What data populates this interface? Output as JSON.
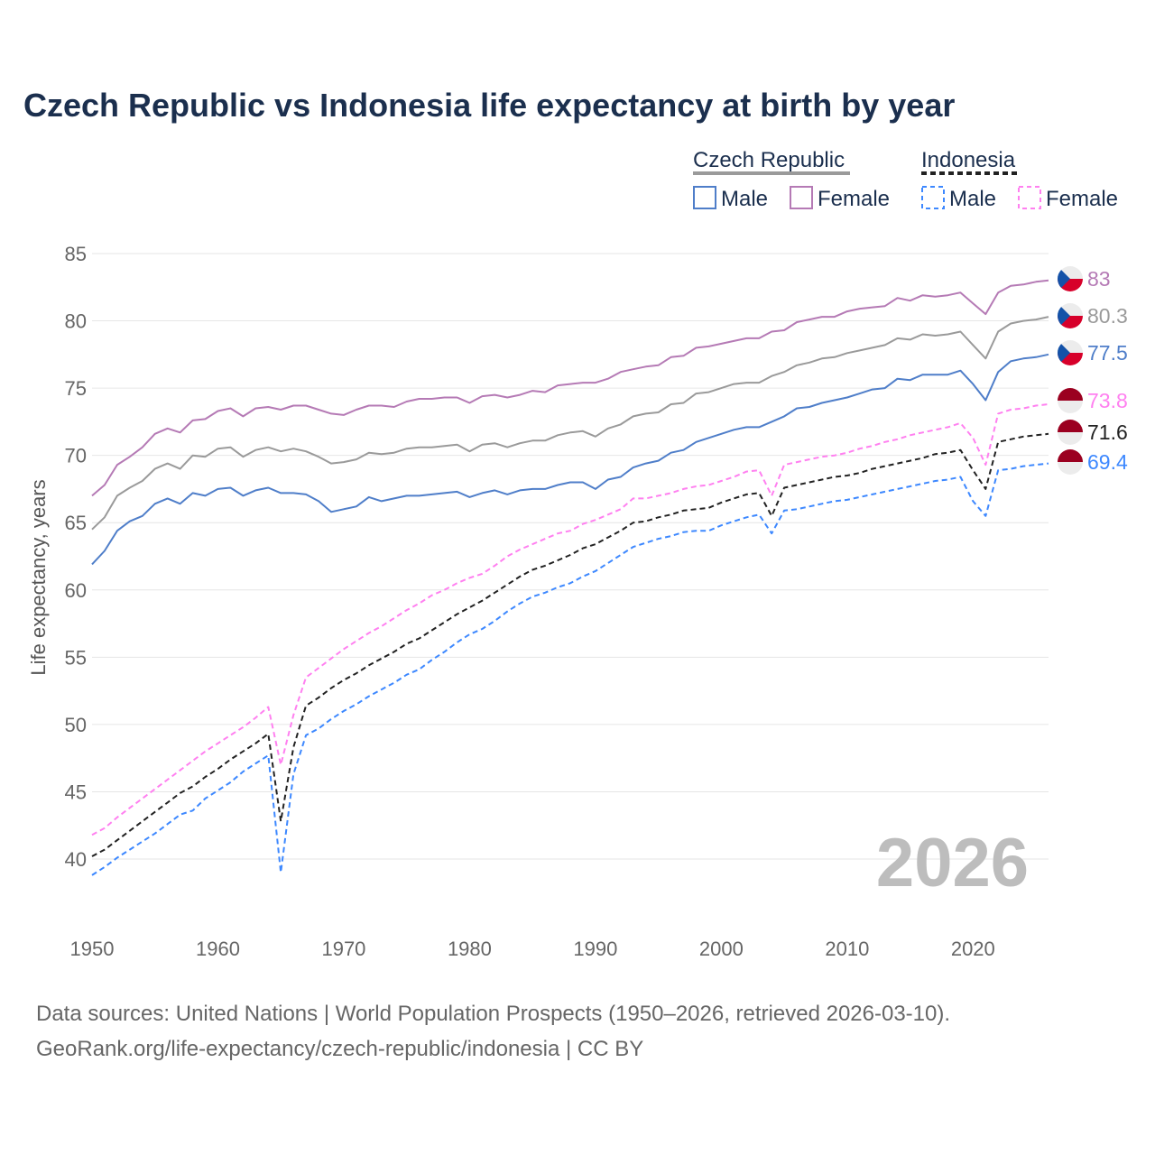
{
  "chart_data": {
    "type": "line",
    "title": "Czech Republic vs Indonesia life expectancy at birth by year",
    "xlabel": "",
    "ylabel": "Life expectancy, years",
    "x_start": 1950,
    "x_end": 2026,
    "xlim": [
      1950,
      2026
    ],
    "ylim": [
      37,
      85
    ],
    "x_ticks": [
      1950,
      1960,
      1970,
      1980,
      1990,
      2000,
      2010,
      2020
    ],
    "y_ticks": [
      40,
      45,
      50,
      55,
      60,
      65,
      70,
      75,
      80,
      85
    ],
    "grid": true,
    "watermark_year": "2026",
    "legend": {
      "groups": [
        {
          "name": "Czech Republic",
          "items": [
            "Male",
            "Female"
          ]
        },
        {
          "name": "Indonesia",
          "items": [
            "Male",
            "Female"
          ]
        }
      ],
      "placement": "top-right"
    },
    "series": [
      {
        "name": "Czech Republic Female",
        "country": "Czech Republic",
        "sex": "Female",
        "color": "#b57ab5",
        "dashed": false,
        "end_label": "83",
        "values": [
          67.0,
          67.8,
          69.3,
          69.9,
          70.6,
          71.6,
          72.0,
          71.7,
          72.6,
          72.7,
          73.3,
          73.5,
          72.9,
          73.5,
          73.6,
          73.4,
          73.7,
          73.7,
          73.4,
          73.1,
          73.0,
          73.4,
          73.7,
          73.7,
          73.6,
          74.0,
          74.2,
          74.2,
          74.3,
          74.3,
          73.9,
          74.4,
          74.5,
          74.3,
          74.5,
          74.8,
          74.7,
          75.2,
          75.3,
          75.4,
          75.4,
          75.7,
          76.2,
          76.4,
          76.6,
          76.7,
          77.3,
          77.4,
          78.0,
          78.1,
          78.3,
          78.5,
          78.7,
          78.7,
          79.2,
          79.3,
          79.9,
          80.1,
          80.3,
          80.3,
          80.7,
          80.9,
          81.0,
          81.1,
          81.7,
          81.5,
          81.9,
          81.8,
          81.9,
          82.1,
          81.3,
          80.5,
          82.1,
          82.6,
          82.7,
          82.9,
          83.0
        ]
      },
      {
        "name": "Czech Republic",
        "country": "Czech Republic",
        "sex": "Total",
        "color": "#9a9a9a",
        "dashed": false,
        "end_label": "80.3",
        "values": [
          64.5,
          65.4,
          67.0,
          67.6,
          68.1,
          69.0,
          69.4,
          69.0,
          70.0,
          69.9,
          70.5,
          70.6,
          69.9,
          70.4,
          70.6,
          70.3,
          70.5,
          70.3,
          69.9,
          69.4,
          69.5,
          69.7,
          70.2,
          70.1,
          70.2,
          70.5,
          70.6,
          70.6,
          70.7,
          70.8,
          70.3,
          70.8,
          70.9,
          70.6,
          70.9,
          71.1,
          71.1,
          71.5,
          71.7,
          71.8,
          71.4,
          72.0,
          72.3,
          72.9,
          73.1,
          73.2,
          73.8,
          73.9,
          74.6,
          74.7,
          75.0,
          75.3,
          75.4,
          75.4,
          75.9,
          76.2,
          76.7,
          76.9,
          77.2,
          77.3,
          77.6,
          77.8,
          78.0,
          78.2,
          78.7,
          78.6,
          79.0,
          78.9,
          79.0,
          79.2,
          78.2,
          77.2,
          79.2,
          79.8,
          80.0,
          80.1,
          80.3
        ]
      },
      {
        "name": "Czech Republic Male",
        "country": "Czech Republic",
        "sex": "Male",
        "color": "#4f7ec9",
        "dashed": false,
        "end_label": "77.5",
        "values": [
          61.9,
          62.9,
          64.4,
          65.1,
          65.5,
          66.4,
          66.8,
          66.4,
          67.2,
          67.0,
          67.5,
          67.6,
          67.0,
          67.4,
          67.6,
          67.2,
          67.2,
          67.1,
          66.6,
          65.8,
          66.0,
          66.2,
          66.9,
          66.6,
          66.8,
          67.0,
          67.0,
          67.1,
          67.2,
          67.3,
          66.9,
          67.2,
          67.4,
          67.1,
          67.4,
          67.5,
          67.5,
          67.8,
          68.0,
          68.0,
          67.5,
          68.2,
          68.4,
          69.1,
          69.4,
          69.6,
          70.2,
          70.4,
          71.0,
          71.3,
          71.6,
          71.9,
          72.1,
          72.1,
          72.5,
          72.9,
          73.5,
          73.6,
          73.9,
          74.1,
          74.3,
          74.6,
          74.9,
          75.0,
          75.7,
          75.6,
          76.0,
          76.0,
          76.0,
          76.3,
          75.3,
          74.1,
          76.2,
          77.0,
          77.2,
          77.3,
          77.5
        ]
      },
      {
        "name": "Indonesia Female",
        "country": "Indonesia",
        "sex": "Female",
        "color": "#ff80f0",
        "dashed": true,
        "end_label": "73.8",
        "values": [
          41.8,
          42.3,
          43.1,
          43.8,
          44.5,
          45.2,
          45.9,
          46.6,
          47.3,
          48.0,
          48.6,
          49.2,
          49.8,
          50.5,
          51.3,
          47.0,
          50.7,
          53.5,
          54.2,
          54.9,
          55.6,
          56.2,
          56.8,
          57.3,
          57.9,
          58.5,
          59.0,
          59.6,
          60.0,
          60.5,
          60.9,
          61.2,
          61.8,
          62.5,
          63.0,
          63.4,
          63.8,
          64.2,
          64.4,
          64.9,
          65.2,
          65.6,
          66.0,
          66.8,
          66.8,
          67.0,
          67.2,
          67.5,
          67.7,
          67.8,
          68.1,
          68.4,
          68.8,
          68.9,
          67.0,
          69.3,
          69.5,
          69.7,
          69.9,
          70.0,
          70.2,
          70.5,
          70.7,
          71.0,
          71.2,
          71.5,
          71.7,
          71.9,
          72.1,
          72.4,
          71.3,
          69.3,
          73.1,
          73.4,
          73.5,
          73.7,
          73.8
        ]
      },
      {
        "name": "Indonesia",
        "country": "Indonesia",
        "sex": "Total",
        "color": "#222222",
        "dashed": true,
        "end_label": "71.6",
        "values": [
          40.2,
          40.7,
          41.4,
          42.1,
          42.8,
          43.5,
          44.2,
          44.9,
          45.4,
          46.1,
          46.7,
          47.4,
          48.0,
          48.6,
          49.3,
          42.8,
          48.3,
          51.4,
          52.0,
          52.7,
          53.3,
          53.8,
          54.4,
          54.9,
          55.4,
          56.0,
          56.4,
          57.0,
          57.6,
          58.2,
          58.7,
          59.2,
          59.8,
          60.4,
          61.0,
          61.5,
          61.8,
          62.2,
          62.6,
          63.1,
          63.4,
          63.9,
          64.4,
          65.0,
          65.1,
          65.4,
          65.6,
          65.9,
          66.0,
          66.1,
          66.5,
          66.8,
          67.1,
          67.2,
          65.5,
          67.6,
          67.8,
          68.0,
          68.2,
          68.4,
          68.5,
          68.7,
          69.0,
          69.2,
          69.4,
          69.6,
          69.8,
          70.1,
          70.2,
          70.4,
          68.9,
          67.5,
          71.0,
          71.2,
          71.4,
          71.5,
          71.6
        ]
      },
      {
        "name": "Indonesia Male",
        "country": "Indonesia",
        "sex": "Male",
        "color": "#3d88ff",
        "dashed": true,
        "end_label": "69.4",
        "values": [
          38.8,
          39.4,
          40.1,
          40.7,
          41.3,
          41.9,
          42.6,
          43.3,
          43.6,
          44.5,
          45.1,
          45.7,
          46.5,
          47.1,
          47.7,
          39.0,
          46.3,
          49.2,
          49.7,
          50.4,
          51.0,
          51.5,
          52.1,
          52.6,
          53.1,
          53.7,
          54.1,
          54.8,
          55.4,
          56.1,
          56.7,
          57.1,
          57.7,
          58.4,
          59.0,
          59.5,
          59.8,
          60.2,
          60.5,
          61.0,
          61.4,
          62.0,
          62.6,
          63.2,
          63.5,
          63.8,
          64.0,
          64.3,
          64.4,
          64.4,
          64.8,
          65.1,
          65.4,
          65.6,
          64.2,
          65.9,
          66.0,
          66.2,
          66.4,
          66.6,
          66.7,
          66.9,
          67.1,
          67.3,
          67.5,
          67.7,
          67.9,
          68.1,
          68.2,
          68.4,
          66.6,
          65.5,
          68.9,
          69.0,
          69.2,
          69.3,
          69.4
        ]
      }
    ]
  },
  "footer": {
    "line1": "Data sources: United Nations | World Population Prospects (1950–2026, retrieved 2026-03-10).",
    "line2": "GeoRank.org/life-expectancy/czech-republic/indonesia | CC BY"
  }
}
